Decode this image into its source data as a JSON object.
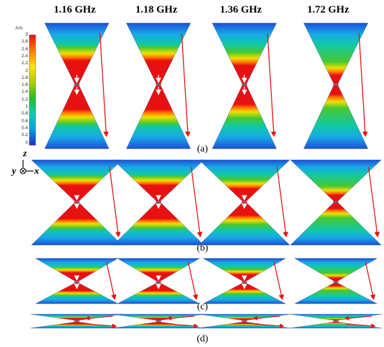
{
  "frequencies": [
    "1.16 GHz",
    "1.18 GHz",
    "1.36 GHz",
    "1.72 GHz"
  ],
  "panels": [
    "(a)",
    "(b)",
    "(c)",
    "(d)"
  ],
  "colorbar": {
    "unit": "A/m",
    "ticks": [
      "3",
      "2.8",
      "2.6",
      "2.4",
      "2.2",
      "2",
      "1.8",
      "1.6",
      "1.4",
      "1.2",
      "1",
      "0.8",
      "0.6",
      "0.4",
      "0.2",
      "0"
    ],
    "colors": [
      "#2828c8",
      "#00a0e6",
      "#00d0b0",
      "#20c020",
      "#b0d000",
      "#ffe000",
      "#ff7a00",
      "#e81010"
    ]
  },
  "axes": {
    "z": "z",
    "y": "y",
    "x": "x"
  },
  "arrow_color": "#e81010"
}
